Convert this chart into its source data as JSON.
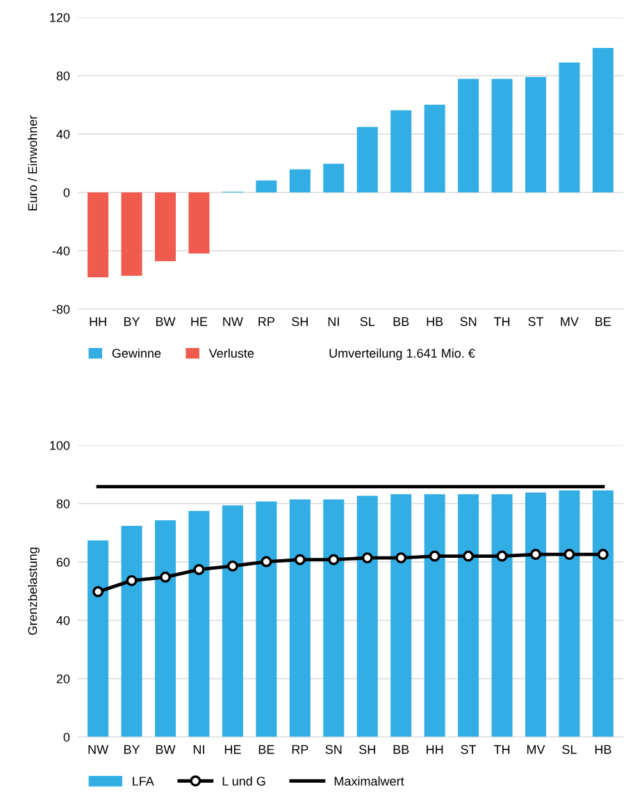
{
  "chart_data": [
    {
      "type": "bar",
      "ylabel": "Euro / Einwohner",
      "stacked": true,
      "categories": [
        "HH",
        "BY",
        "BW",
        "HE",
        "NW",
        "RP",
        "SH",
        "NI",
        "SL",
        "BB",
        "HB",
        "SN",
        "TH",
        "ST",
        "MV",
        "BE"
      ],
      "series": [
        {
          "name": "Gewinne",
          "color": "#33aee4",
          "values": [
            null,
            null,
            null,
            null,
            0.5,
            8.2,
            15.8,
            19.6,
            44.9,
            56.3,
            60.1,
            77.8,
            77.8,
            79.2,
            89,
            99
          ]
        },
        {
          "name": "Verluste",
          "color": "#ef5b4f",
          "values": [
            -58.2,
            -57.1,
            -47.1,
            -41.9,
            null,
            null,
            null,
            null,
            null,
            null,
            null,
            null,
            null,
            null,
            null,
            null
          ]
        }
      ],
      "ylim": [
        -80,
        120
      ],
      "yticks": [
        -80,
        -40,
        0,
        40,
        80,
        120
      ],
      "grid": "y",
      "legend": "bottom",
      "annotations": [
        "Umverteilung 1.641 Mio. €"
      ]
    },
    {
      "type": "bar",
      "ylabel": "Grenzbelastung",
      "categories": [
        "NW",
        "BY",
        "BW",
        "NI",
        "HE",
        "BE",
        "RP",
        "SN",
        "SH",
        "BB",
        "HH",
        "ST",
        "TH",
        "MV",
        "SL",
        "HB"
      ],
      "series": [
        {
          "name": "LFA",
          "color": "#33aee4",
          "values": [
            67.4,
            72.4,
            74.3,
            77.5,
            79.4,
            80.7,
            81.4,
            81.4,
            82.7,
            83.2,
            83.2,
            83.2,
            83.2,
            83.8,
            84.5,
            84.5
          ]
        },
        {
          "name": "L und G",
          "type": "line",
          "color": "#000000",
          "marker": "circle",
          "values": [
            49.8,
            53.6,
            54.8,
            57.4,
            58.6,
            60.1,
            60.8,
            60.8,
            61.4,
            61.4,
            62.0,
            62.0,
            62.0,
            62.6,
            62.6,
            62.6
          ]
        },
        {
          "name": "Maximalwert",
          "type": "line",
          "color": "#000000",
          "marker": "none",
          "values": [
            85.8,
            85.8,
            85.8,
            85.8,
            85.8,
            85.8,
            85.8,
            85.8,
            85.8,
            85.8,
            85.8,
            85.8,
            85.8,
            85.8,
            85.8,
            85.8
          ]
        }
      ],
      "ylim": [
        0,
        100
      ],
      "yticks": [
        0,
        20,
        40,
        60,
        80,
        100
      ],
      "grid": "y",
      "legend": "bottom"
    }
  ]
}
